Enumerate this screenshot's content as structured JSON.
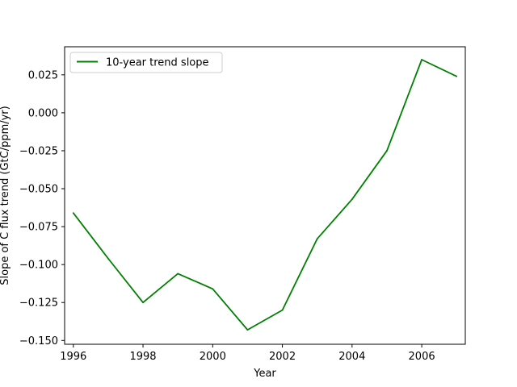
{
  "chart_data": {
    "type": "line",
    "title": "",
    "xlabel": "Year",
    "ylabel": "Slope of C flux trend (GtC/ppm/yr)",
    "xlim": [
      1995.75,
      2007.25
    ],
    "ylim": [
      -0.1525,
      0.0435
    ],
    "x_ticks": [
      1996,
      1998,
      2000,
      2002,
      2004,
      2006
    ],
    "y_ticks": [
      0.025,
      0.0,
      -0.025,
      -0.05,
      -0.075,
      -0.1,
      -0.125,
      -0.15
    ],
    "y_tick_labels": [
      "0.025",
      "0.000",
      "−0.025",
      "−0.050",
      "−0.075",
      "−0.100",
      "−0.125",
      "−0.150"
    ],
    "grid": false,
    "legend_position": "top-left",
    "series": [
      {
        "name": "10-year trend slope",
        "color": "#008000",
        "x": [
          1996,
          1997,
          1998,
          1999,
          2000,
          2001,
          2002,
          2003,
          2004,
          2005,
          2006,
          2007
        ],
        "y": [
          -0.066,
          -0.096,
          -0.125,
          -0.106,
          -0.116,
          -0.143,
          -0.13,
          -0.083,
          -0.057,
          -0.025,
          0.035,
          0.024
        ]
      }
    ]
  }
}
